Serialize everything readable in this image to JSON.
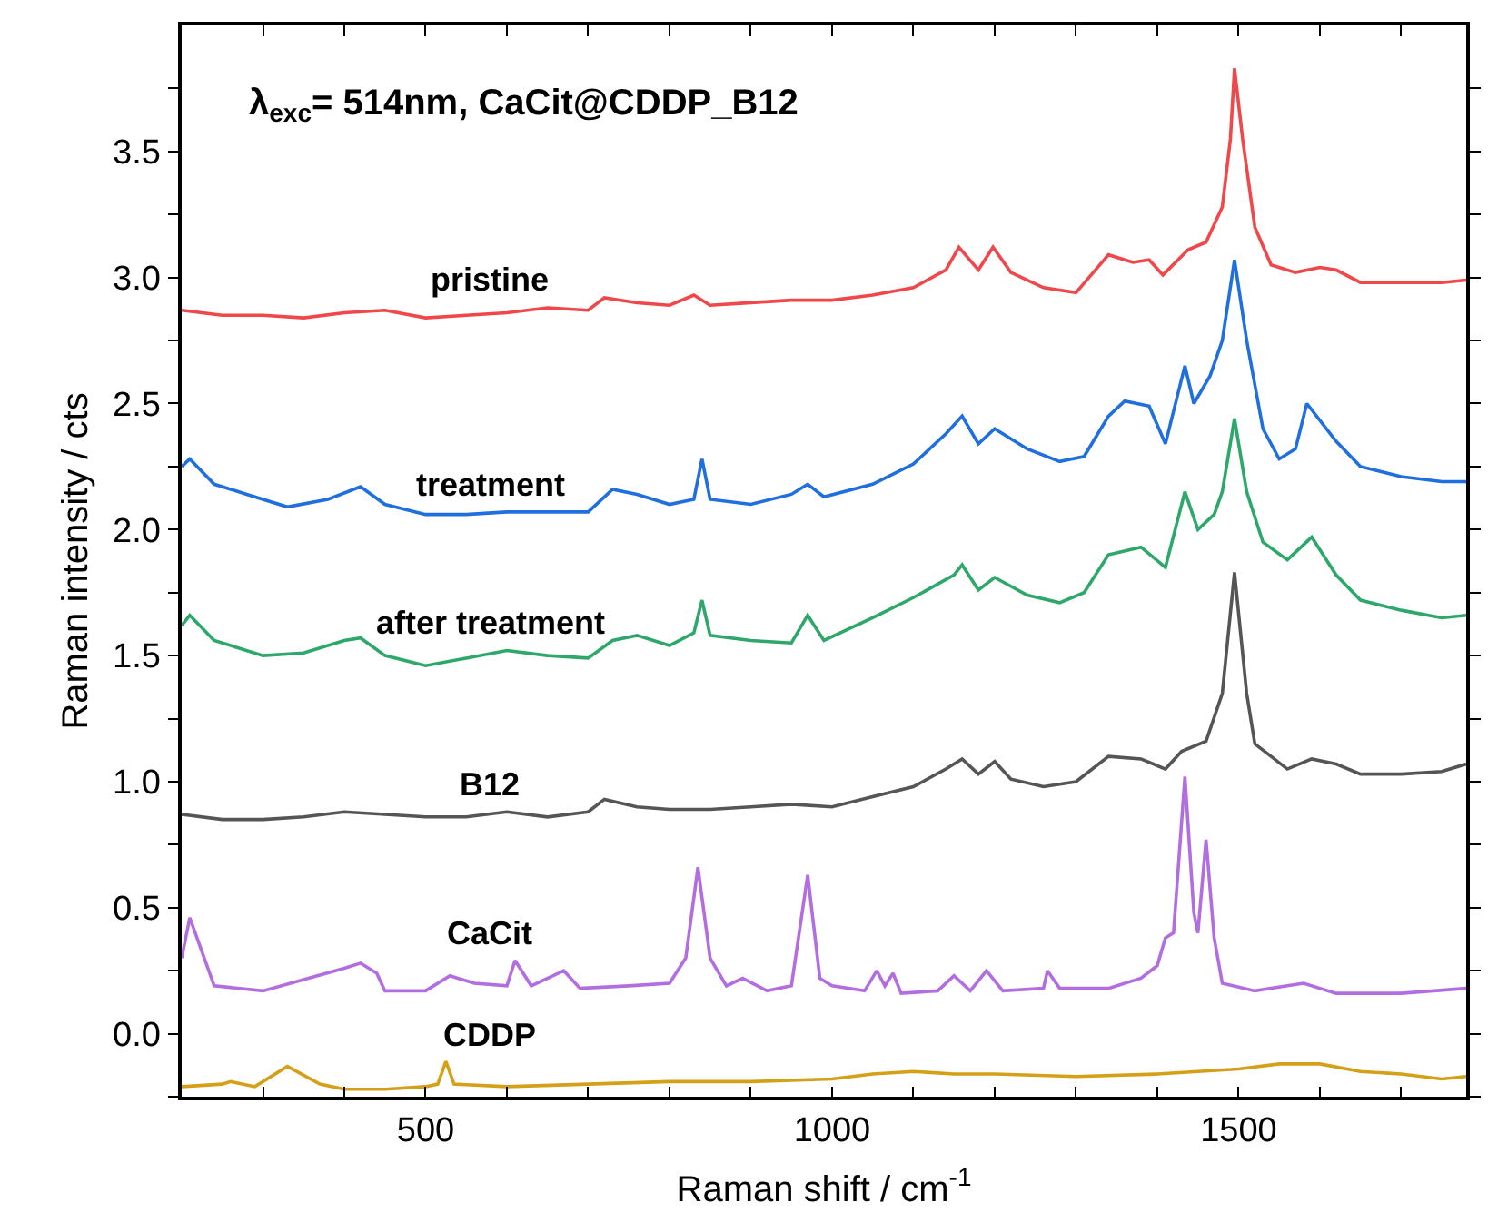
{
  "chart_data": {
    "type": "line",
    "title": "λ$_{exc}$= 514nm, CaCit@CDDP_B12",
    "xlabel": "Raman shift / cm$^{-1}$",
    "ylabel": "Raman intensity / cts",
    "xlim": [
      200,
      1780
    ],
    "ylim": [
      -0.25,
      4.0
    ],
    "xticks": [
      {
        "value": 300,
        "label": null
      },
      {
        "value": 400,
        "label": null
      },
      500,
      {
        "value": 600,
        "label": null
      },
      {
        "value": 700,
        "label": null
      },
      {
        "value": 800,
        "label": null
      },
      {
        "value": 900,
        "label": null
      },
      1000,
      {
        "value": 1100,
        "label": null
      },
      {
        "value": 1200,
        "label": null
      },
      {
        "value": 1300,
        "label": null
      },
      {
        "value": 1400,
        "label": null
      },
      1500,
      {
        "value": 1600,
        "label": null
      },
      {
        "value": 1700,
        "label": null
      }
    ],
    "yticks": [
      {
        "value": -0.25,
        "label": null
      },
      {
        "value": 0,
        "label": "0.0"
      },
      {
        "value": 0.25,
        "label": null
      },
      0.5,
      {
        "value": 0.75,
        "label": null
      },
      {
        "value": 1,
        "label": "1.0"
      },
      {
        "value": 1.25,
        "label": null
      },
      1.5,
      {
        "value": 1.75,
        "label": null
      },
      {
        "value": 2,
        "label": "2.0"
      },
      {
        "value": 2.25,
        "label": null
      },
      2.5,
      {
        "value": 2.75,
        "label": null
      },
      {
        "value": 3,
        "label": "3.0"
      },
      {
        "value": 3.25,
        "label": null
      },
      3.5,
      {
        "value": 3.75,
        "label": null
      }
    ],
    "legend": false,
    "marker": "none",
    "line_style": "solid",
    "series": [
      {
        "name": "pristine",
        "color": "#f0484a",
        "x": [
          200,
          250,
          300,
          350,
          400,
          450,
          500,
          550,
          600,
          650,
          700,
          720,
          760,
          800,
          830,
          850,
          900,
          950,
          1000,
          1050,
          1100,
          1140,
          1156,
          1180,
          1198,
          1220,
          1260,
          1300,
          1340,
          1370,
          1390,
          1407,
          1438,
          1460,
          1480,
          1490,
          1495,
          1505,
          1520,
          1540,
          1570,
          1600,
          1620,
          1650,
          1700,
          1750,
          1780
        ],
        "values": [
          2.87,
          2.85,
          2.85,
          2.84,
          2.86,
          2.87,
          2.84,
          2.85,
          2.86,
          2.88,
          2.87,
          2.92,
          2.9,
          2.89,
          2.93,
          2.89,
          2.9,
          2.91,
          2.91,
          2.93,
          2.96,
          3.03,
          3.12,
          3.03,
          3.12,
          3.02,
          2.96,
          2.94,
          3.09,
          3.06,
          3.07,
          3.01,
          3.11,
          3.14,
          3.28,
          3.55,
          3.83,
          3.55,
          3.2,
          3.05,
          3.02,
          3.04,
          3.03,
          2.98,
          2.98,
          2.98,
          2.99
        ]
      },
      {
        "name": "treatment",
        "color": "#1f6fde",
        "x": [
          200,
          210,
          240,
          280,
          330,
          380,
          420,
          450,
          500,
          550,
          600,
          650,
          700,
          730,
          760,
          800,
          830,
          840,
          850,
          900,
          950,
          970,
          990,
          1050,
          1100,
          1140,
          1160,
          1180,
          1200,
          1240,
          1280,
          1310,
          1340,
          1360,
          1390,
          1410,
          1434,
          1445,
          1465,
          1480,
          1495,
          1510,
          1530,
          1550,
          1570,
          1584,
          1620,
          1650,
          1700,
          1750,
          1780
        ],
        "values": [
          2.25,
          2.28,
          2.18,
          2.14,
          2.09,
          2.12,
          2.17,
          2.1,
          2.06,
          2.06,
          2.07,
          2.07,
          2.07,
          2.16,
          2.14,
          2.1,
          2.12,
          2.28,
          2.12,
          2.1,
          2.14,
          2.18,
          2.13,
          2.18,
          2.26,
          2.38,
          2.45,
          2.34,
          2.4,
          2.32,
          2.27,
          2.29,
          2.45,
          2.51,
          2.49,
          2.34,
          2.65,
          2.5,
          2.61,
          2.75,
          3.07,
          2.75,
          2.4,
          2.28,
          2.32,
          2.5,
          2.35,
          2.25,
          2.21,
          2.19,
          2.19
        ]
      },
      {
        "name": "after treatment",
        "color": "#2ea86a",
        "x": [
          200,
          210,
          240,
          300,
          350,
          400,
          420,
          450,
          500,
          550,
          600,
          650,
          700,
          730,
          760,
          800,
          830,
          840,
          850,
          900,
          950,
          970,
          990,
          1050,
          1100,
          1150,
          1160,
          1180,
          1200,
          1240,
          1280,
          1310,
          1340,
          1380,
          1410,
          1434,
          1450,
          1470,
          1480,
          1495,
          1510,
          1530,
          1560,
          1590,
          1620,
          1650,
          1700,
          1750,
          1780
        ],
        "values": [
          1.62,
          1.66,
          1.56,
          1.5,
          1.51,
          1.56,
          1.57,
          1.5,
          1.46,
          1.49,
          1.52,
          1.5,
          1.49,
          1.56,
          1.58,
          1.54,
          1.59,
          1.72,
          1.58,
          1.56,
          1.55,
          1.66,
          1.56,
          1.65,
          1.73,
          1.82,
          1.86,
          1.76,
          1.81,
          1.74,
          1.71,
          1.75,
          1.9,
          1.93,
          1.85,
          2.15,
          2.0,
          2.06,
          2.15,
          2.44,
          2.15,
          1.95,
          1.88,
          1.97,
          1.82,
          1.72,
          1.68,
          1.65,
          1.66
        ]
      },
      {
        "name": "B12",
        "color": "#555555",
        "x": [
          200,
          250,
          300,
          350,
          400,
          450,
          500,
          550,
          600,
          650,
          700,
          720,
          760,
          800,
          850,
          900,
          950,
          1000,
          1050,
          1100,
          1140,
          1160,
          1180,
          1200,
          1220,
          1260,
          1300,
          1340,
          1380,
          1410,
          1430,
          1460,
          1480,
          1495,
          1510,
          1520,
          1540,
          1560,
          1590,
          1620,
          1650,
          1700,
          1750,
          1780
        ],
        "values": [
          0.87,
          0.85,
          0.85,
          0.86,
          0.88,
          0.87,
          0.86,
          0.86,
          0.88,
          0.86,
          0.88,
          0.93,
          0.9,
          0.89,
          0.89,
          0.9,
          0.91,
          0.9,
          0.94,
          0.98,
          1.05,
          1.09,
          1.03,
          1.08,
          1.01,
          0.98,
          1.0,
          1.1,
          1.09,
          1.05,
          1.12,
          1.16,
          1.35,
          1.83,
          1.35,
          1.15,
          1.1,
          1.05,
          1.09,
          1.07,
          1.03,
          1.03,
          1.04,
          1.07
        ]
      },
      {
        "name": "CaCit",
        "color": "#b26ee0",
        "x": [
          200,
          210,
          240,
          300,
          400,
          420,
          440,
          450,
          500,
          530,
          560,
          600,
          610,
          630,
          670,
          690,
          750,
          800,
          820,
          835,
          850,
          870,
          890,
          920,
          950,
          970,
          985,
          1000,
          1040,
          1055,
          1065,
          1075,
          1085,
          1130,
          1150,
          1170,
          1190,
          1210,
          1260,
          1265,
          1280,
          1340,
          1380,
          1400,
          1410,
          1420,
          1434,
          1445,
          1450,
          1460,
          1470,
          1480,
          1520,
          1560,
          1580,
          1620,
          1700,
          1780
        ],
        "values": [
          0.3,
          0.46,
          0.19,
          0.17,
          0.26,
          0.28,
          0.24,
          0.17,
          0.17,
          0.23,
          0.2,
          0.19,
          0.29,
          0.19,
          0.25,
          0.18,
          0.19,
          0.2,
          0.3,
          0.66,
          0.3,
          0.19,
          0.22,
          0.17,
          0.19,
          0.63,
          0.22,
          0.19,
          0.17,
          0.25,
          0.19,
          0.24,
          0.16,
          0.17,
          0.23,
          0.17,
          0.25,
          0.17,
          0.18,
          0.25,
          0.18,
          0.18,
          0.22,
          0.27,
          0.38,
          0.4,
          1.02,
          0.48,
          0.4,
          0.77,
          0.38,
          0.2,
          0.17,
          0.19,
          0.2,
          0.16,
          0.16,
          0.18
        ]
      },
      {
        "name": "CDDP",
        "color": "#d4a017",
        "x": [
          200,
          250,
          260,
          290,
          330,
          370,
          400,
          450,
          500,
          515,
          525,
          535,
          600,
          700,
          800,
          900,
          1000,
          1050,
          1100,
          1150,
          1200,
          1300,
          1400,
          1450,
          1500,
          1550,
          1600,
          1650,
          1700,
          1750,
          1780
        ],
        "values": [
          -0.21,
          -0.2,
          -0.19,
          -0.21,
          -0.13,
          -0.2,
          -0.22,
          -0.22,
          -0.21,
          -0.2,
          -0.11,
          -0.2,
          -0.21,
          -0.2,
          -0.19,
          -0.19,
          -0.18,
          -0.16,
          -0.15,
          -0.16,
          -0.16,
          -0.17,
          -0.16,
          -0.15,
          -0.14,
          -0.12,
          -0.12,
          -0.15,
          -0.16,
          -0.18,
          -0.17
        ]
      }
    ]
  }
}
